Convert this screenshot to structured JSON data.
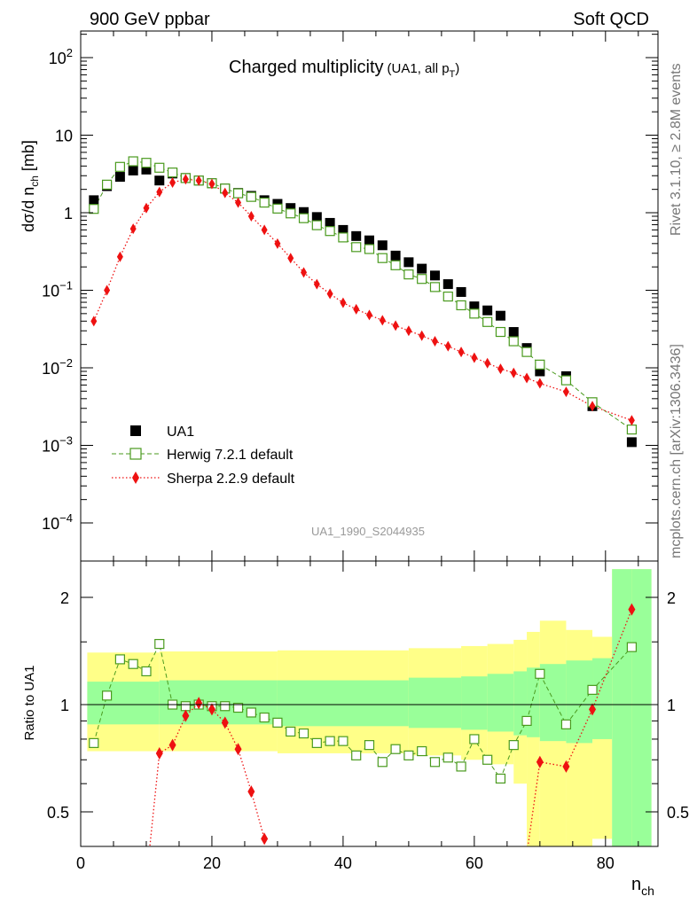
{
  "header": {
    "left": "900 GeV ppbar",
    "right": "Soft QCD"
  },
  "side_labels": {
    "rivet": "Rivet 3.1.10, ≥ 2.8M events",
    "mcplots": "mcplots.cern.ch [arXiv:1306.3436]"
  },
  "title": {
    "main": "Charged multiplicity",
    "sub_pre": "(UA1, all p",
    "sub_sub": "T",
    "sub_post": ")"
  },
  "analysis_id": "UA1_1990_S2044935",
  "axes": {
    "ylabel_main": "dσ/d n_ch [mb]",
    "ylabel_ratio": "Ratio to UA1",
    "xlabel": "n_ch",
    "x_ticks": [
      "0",
      "20",
      "40",
      "60",
      "80"
    ],
    "y_ticks_main": [
      "10^-4",
      "10^-3",
      "10^-2",
      "10^-1",
      "1",
      "10",
      "10^2"
    ],
    "y_ticks_ratio": [
      "0.5",
      "1",
      "2"
    ]
  },
  "legend": [
    {
      "label": "UA1",
      "marker": "square-filled",
      "color": "#000000"
    },
    {
      "label": "Herwig 7.2.1 default",
      "marker": "square-open",
      "color": "#4a9a1e"
    },
    {
      "label": "Sherpa 2.2.9 default",
      "marker": "diamond",
      "color": "#ee1111"
    }
  ],
  "chart_data": {
    "type": "scatter",
    "x_range": [
      0,
      88
    ],
    "y_range_main": [
      3e-05,
      200
    ],
    "y_scale_main": "log",
    "y_range_ratio": [
      0.4,
      2.4
    ],
    "y_scale_ratio": "log",
    "colors": {
      "ua1": "#000000",
      "herwig": "#4a9a1e",
      "sherpa": "#ee1111",
      "band_inner": "#99ff99",
      "band_outer": "#ffff88"
    },
    "ua1": {
      "x": [
        2,
        4,
        6,
        8,
        10,
        12,
        14,
        16,
        18,
        20,
        22,
        24,
        26,
        28,
        30,
        32,
        34,
        36,
        38,
        40,
        42,
        44,
        46,
        48,
        50,
        52,
        54,
        56,
        58,
        60,
        62,
        64,
        66,
        68,
        70,
        74,
        78,
        84
      ],
      "y": [
        1.45,
        2.2,
        2.9,
        3.5,
        3.6,
        2.6,
        3.2,
        2.8,
        2.6,
        2.4,
        2.05,
        1.8,
        1.65,
        1.45,
        1.3,
        1.15,
        1.02,
        0.88,
        0.74,
        0.6,
        0.5,
        0.44,
        0.38,
        0.28,
        0.23,
        0.19,
        0.155,
        0.12,
        0.095,
        0.062,
        0.055,
        0.047,
        0.029,
        0.018,
        0.009,
        0.0078,
        0.0032,
        0.0011
      ]
    },
    "herwig": {
      "x": [
        2,
        4,
        6,
        8,
        10,
        12,
        14,
        16,
        18,
        20,
        22,
        24,
        26,
        28,
        30,
        32,
        34,
        36,
        38,
        40,
        42,
        44,
        46,
        48,
        50,
        52,
        54,
        56,
        58,
        60,
        62,
        64,
        66,
        68,
        70,
        74,
        78,
        84
      ],
      "y": [
        1.12,
        2.3,
        3.9,
        4.6,
        4.4,
        3.8,
        3.3,
        2.8,
        2.6,
        2.4,
        2.05,
        1.78,
        1.6,
        1.35,
        1.13,
        0.98,
        0.85,
        0.69,
        0.58,
        0.48,
        0.36,
        0.34,
        0.26,
        0.21,
        0.16,
        0.14,
        0.11,
        0.083,
        0.064,
        0.05,
        0.039,
        0.029,
        0.022,
        0.016,
        0.011,
        0.0069,
        0.0036,
        0.0016
      ]
    },
    "sherpa": {
      "x": [
        2,
        4,
        6,
        8,
        10,
        12,
        14,
        16,
        18,
        20,
        22,
        24,
        26,
        28,
        30,
        32,
        34,
        36,
        38,
        40,
        42,
        44,
        46,
        48,
        50,
        52,
        54,
        56,
        58,
        60,
        62,
        64,
        66,
        68,
        70,
        74,
        78,
        84
      ],
      "y": [
        0.04,
        0.1,
        0.27,
        0.62,
        1.15,
        1.85,
        2.45,
        2.7,
        2.6,
        2.35,
        1.8,
        1.35,
        0.9,
        0.6,
        0.4,
        0.26,
        0.17,
        0.12,
        0.09,
        0.069,
        0.057,
        0.048,
        0.041,
        0.035,
        0.03,
        0.026,
        0.022,
        0.019,
        0.016,
        0.0135,
        0.0115,
        0.0097,
        0.0086,
        0.0074,
        0.0063,
        0.0049,
        0.0032,
        0.0021
      ]
    },
    "ratio_herwig": {
      "x": [
        2,
        4,
        6,
        8,
        10,
        12,
        14,
        16,
        18,
        20,
        22,
        24,
        26,
        28,
        30,
        32,
        34,
        36,
        38,
        40,
        42,
        44,
        46,
        48,
        50,
        52,
        54,
        56,
        58,
        60,
        62,
        64,
        66,
        68,
        70,
        74,
        78,
        84
      ],
      "y": [
        0.78,
        1.06,
        1.34,
        1.3,
        1.24,
        1.48,
        1.0,
        0.99,
        1.0,
        0.99,
        0.99,
        0.98,
        0.95,
        0.92,
        0.89,
        0.84,
        0.83,
        0.78,
        0.79,
        0.79,
        0.72,
        0.77,
        0.69,
        0.75,
        0.72,
        0.74,
        0.69,
        0.71,
        0.67,
        0.8,
        0.7,
        0.62,
        0.77,
        0.9,
        1.22,
        0.88,
        1.1,
        1.45
      ]
    },
    "ratio_sherpa": {
      "x": [
        10,
        12,
        14,
        16,
        18,
        20,
        22,
        24,
        26,
        28,
        68,
        70,
        74,
        78,
        84
      ],
      "y": [
        0.32,
        0.73,
        0.77,
        0.93,
        1.01,
        0.97,
        0.89,
        0.75,
        0.57,
        0.42,
        0.38,
        0.69,
        0.67,
        0.97,
        1.85
      ]
    },
    "uncertainty_band": {
      "x_edges": [
        1,
        12,
        30,
        50,
        58,
        62,
        66,
        68,
        70,
        74,
        78,
        81,
        84,
        87
      ],
      "inner_low": [
        0.88,
        0.88,
        0.87,
        0.86,
        0.85,
        0.84,
        0.82,
        0.81,
        0.79,
        0.78,
        0.8,
        0.0,
        0.0
      ],
      "inner_high": [
        1.16,
        1.17,
        1.17,
        1.19,
        1.2,
        1.22,
        1.24,
        1.27,
        1.3,
        1.33,
        1.35,
        2.4,
        2.4
      ],
      "outer_low": [
        0.74,
        0.74,
        0.73,
        0.72,
        0.7,
        0.68,
        0.6,
        0.4,
        0.4,
        0.4,
        0.42,
        0.0,
        0.0
      ],
      "outer_high": [
        1.4,
        1.41,
        1.42,
        1.44,
        1.46,
        1.48,
        1.52,
        1.6,
        1.72,
        1.62,
        1.55,
        2.4,
        2.4
      ]
    }
  }
}
